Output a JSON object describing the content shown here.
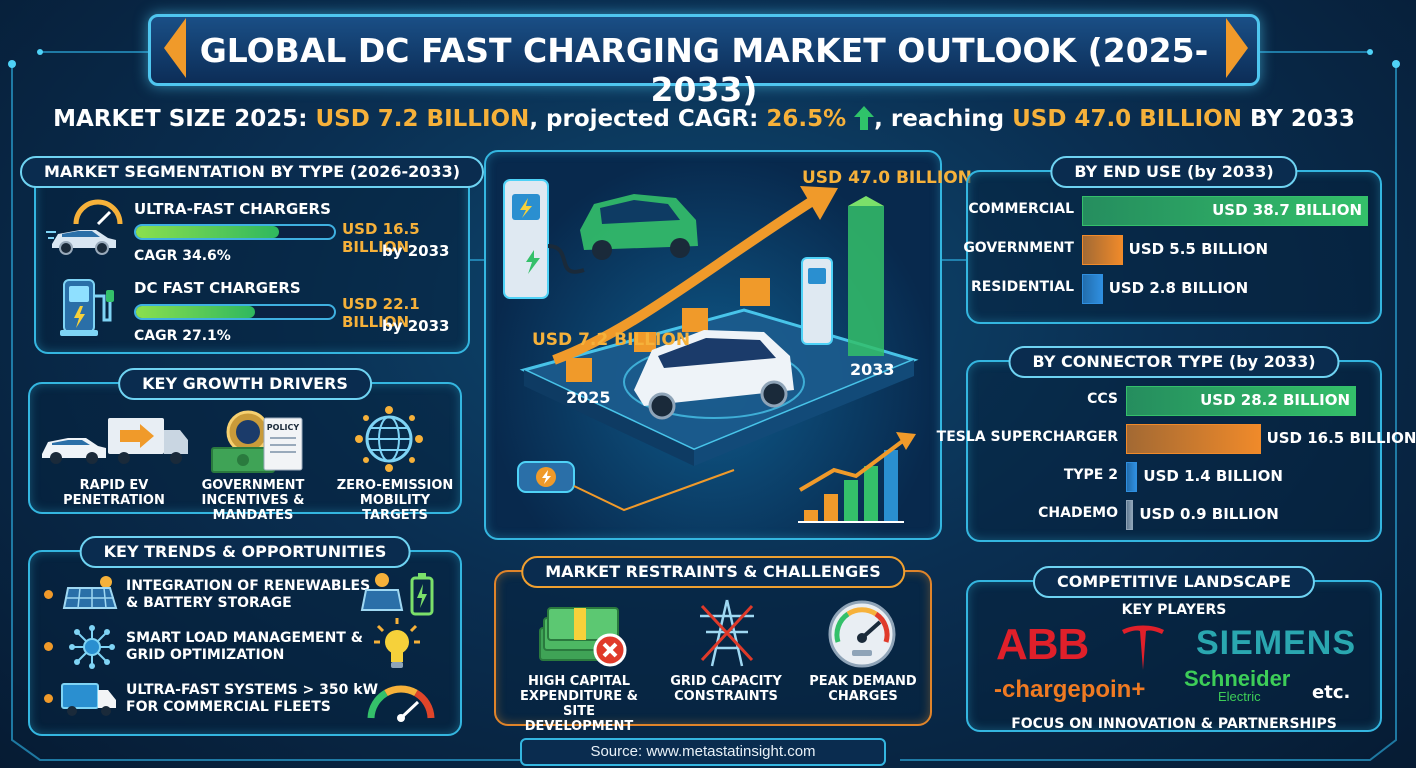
{
  "header": {
    "title": "GLOBAL DC FAST CHARGING MARKET OUTLOOK (2025-2033)"
  },
  "subtitle": {
    "p1": "MARKET SIZE 2025: ",
    "v1": "USD 7.2 BILLION",
    "p2": ", projected CAGR: ",
    "v2": "26.5%",
    "p3": ", reaching ",
    "v3": "USD 47.0 BILLION",
    "p4": " BY 2033"
  },
  "segmentation": {
    "title": "MARKET SEGMENTATION BY TYPE (2026-2033)",
    "items": [
      {
        "name": "ULTRA-FAST CHARGERS",
        "cagr": "CAGR 34.6%",
        "value": "USD 16.5 BILLION",
        "by": "by 2033",
        "fill": 0.72,
        "icon": "car-speed-icon"
      },
      {
        "name": "DC FAST CHARGERS",
        "cagr": "CAGR 27.1%",
        "value": "USD 22.1 BILLION",
        "by": "by 2033",
        "fill": 0.6,
        "icon": "charging-station-icon"
      }
    ]
  },
  "drivers": {
    "title": "KEY GROWTH DRIVERS",
    "items": [
      {
        "line1": "RAPID EV",
        "line2": "PENETRATION",
        "icon": "car-truck-icon"
      },
      {
        "line1": "GOVERNMENT",
        "line2": "INCENTIVES & MANDATES",
        "icon": "policy-money-icon",
        "policy": "POLICY"
      },
      {
        "line1": "ZERO-EMISSION",
        "line2": "MOBILITY TARGETS",
        "icon": "globe-network-icon"
      }
    ]
  },
  "trends": {
    "title": "KEY TRENDS & OPPORTUNITIES",
    "items": [
      {
        "line1": "INTEGRATION OF RENEWABLES",
        "line2": "& BATTERY STORAGE",
        "icon": "solar-panel-icon",
        "right_icon": "solar-battery-icon"
      },
      {
        "line1": "SMART LOAD MANAGEMENT &",
        "line2": "GRID OPTIMIZATION",
        "icon": "network-hub-icon",
        "right_icon": "lightbulb-icon"
      },
      {
        "line1": "ULTRA-FAST SYSTEMS > 350 kW",
        "line2": "FOR COMMERCIAL FLEETS",
        "icon": "truck-icon",
        "right_icon": "speed-gauge-icon"
      }
    ]
  },
  "hero": {
    "start_label": "USD 7.2 BILLION",
    "start_year": "2025",
    "end_label": "USD 47.0 BILLION",
    "end_year": "2033"
  },
  "restraints": {
    "title": "MARKET RESTRAINTS & CHALLENGES",
    "items": [
      {
        "line1": "HIGH CAPITAL",
        "line2": "EXPENDITURE & SITE",
        "line3": "DEVELOPMENT",
        "icon": "money-stack-x-icon"
      },
      {
        "line1": "GRID CAPACITY",
        "line2": "CONSTRAINTS",
        "line3": "",
        "icon": "power-tower-icon"
      },
      {
        "line1": "PEAK DEMAND",
        "line2": "CHARGES",
        "line3": "",
        "icon": "gauge-icon"
      }
    ]
  },
  "end_use": {
    "title": "BY END USE (by 2033)",
    "items": [
      {
        "label": "COMMERCIAL",
        "value": "USD 38.7 BILLION",
        "num": 38.7,
        "color": "#34c06a"
      },
      {
        "label": "GOVERNMENT",
        "value": "USD 5.5 BILLION",
        "num": 5.5,
        "color": "#f08a2a"
      },
      {
        "label": "RESIDENTIAL",
        "value": "USD 2.8 BILLION",
        "num": 2.8,
        "color": "#2f8fe0"
      }
    ]
  },
  "connector": {
    "title": "BY CONNECTOR TYPE (by 2033)",
    "items": [
      {
        "label": "CCS",
        "value": "USD 28.2 BILLION",
        "num": 28.2,
        "color": "#34c06a"
      },
      {
        "label": "TESLA SUPERCHARGER",
        "value": "USD 16.5 BILLION",
        "num": 16.5,
        "color": "#f08a2a"
      },
      {
        "label": "TYPE 2",
        "value": "USD 1.4 BILLION",
        "num": 1.4,
        "color": "#2f8fe0"
      },
      {
        "label": "CHADEMO",
        "value": "USD 0.9 BILLION",
        "num": 0.9,
        "color": "#8fa4b8"
      }
    ]
  },
  "competitive": {
    "title": "COMPETITIVE LANDSCAPE",
    "subtitle": "KEY PLAYERS",
    "abb": "ABB",
    "siemens": "SIEMENS",
    "chargepoint": "-chargepoin+",
    "schneider1": "Schneider",
    "schneider2": "Electric",
    "etc": "etc.",
    "focus": "FOCUS ON INNOVATION & PARTNERSHIPS"
  },
  "source": "Source: www.metastatinsight.com",
  "colors": {
    "accent": "#34b6e0",
    "gold": "#f6b13a",
    "green": "#7be06a",
    "orange": "#f08a2a"
  }
}
